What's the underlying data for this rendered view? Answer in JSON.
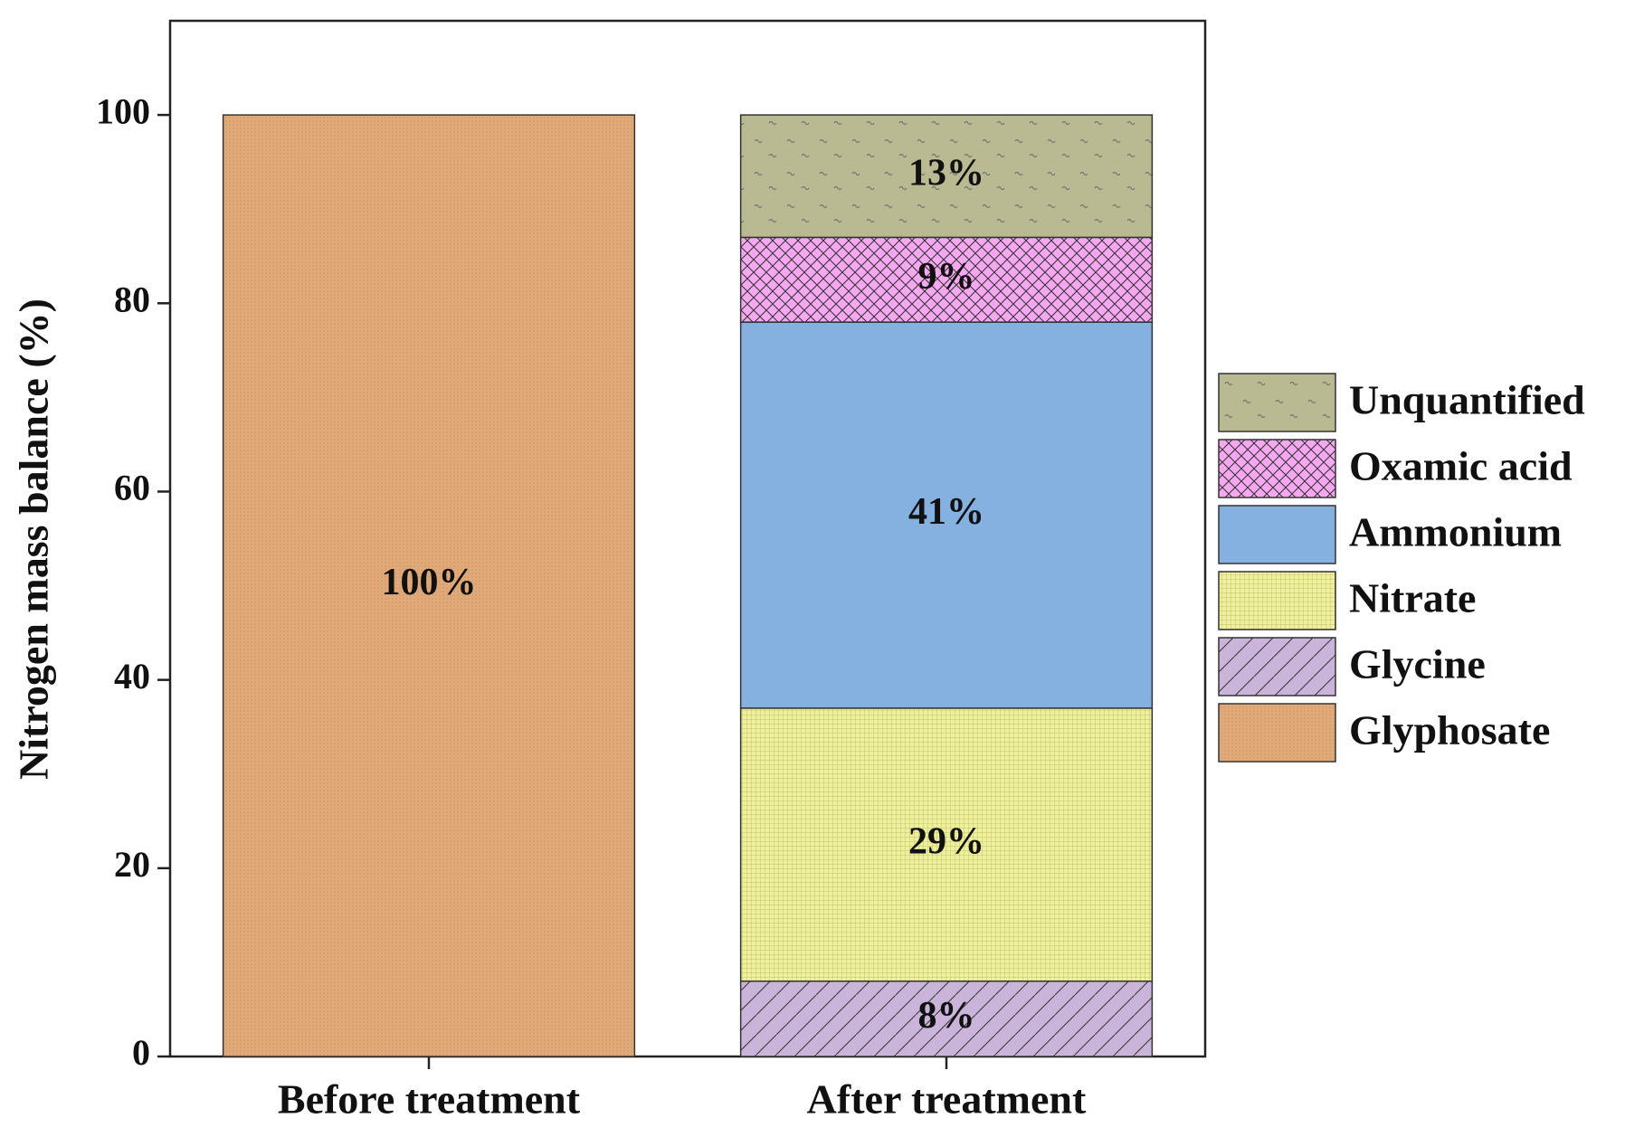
{
  "chart_data": {
    "type": "stacked_bar",
    "y_label": "Nitrogen mass balance (%)",
    "categories": [
      "Before treatment",
      "After treatment"
    ],
    "series": [
      {
        "name": "Glyphosate",
        "color": "#e2a978",
        "pattern": "dots",
        "values": [
          100,
          0
        ],
        "value_labels": [
          "100%",
          null
        ]
      },
      {
        "name": "Glycine",
        "color": "#cbb4da",
        "pattern": "diagonal",
        "values": [
          0,
          8
        ],
        "value_labels": [
          null,
          "8%"
        ]
      },
      {
        "name": "Nitrate",
        "color": "#eef09c",
        "pattern": "grid",
        "values": [
          0,
          29
        ],
        "value_labels": [
          null,
          "29%"
        ]
      },
      {
        "name": "Ammonium",
        "color": "#85b1e0",
        "pattern": "none",
        "values": [
          0,
          41
        ],
        "value_labels": [
          null,
          "41%"
        ]
      },
      {
        "name": "Oxamic acid",
        "color": "#f5a8f0",
        "pattern": "crosshatch",
        "values": [
          0,
          9
        ],
        "value_labels": [
          null,
          "9%"
        ]
      },
      {
        "name": "Unquantified",
        "color": "#b9b992",
        "pattern": "wave",
        "values": [
          0,
          13
        ],
        "value_labels": [
          null,
          "13%"
        ]
      }
    ],
    "ylim": [
      0,
      110
    ],
    "yticks": [
      0,
      20,
      40,
      60,
      80,
      100
    ],
    "legend": "right",
    "grid": false
  }
}
